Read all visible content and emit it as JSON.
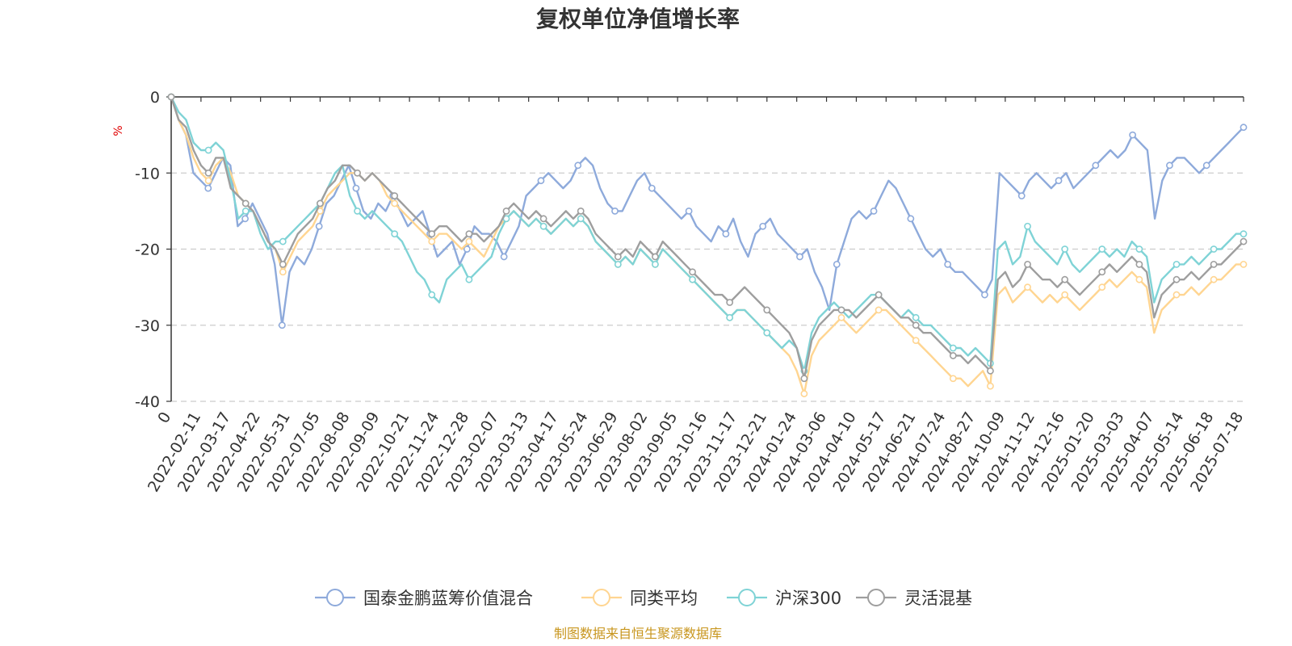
{
  "chart_data": {
    "type": "line",
    "title": "复权单位净值增长率",
    "y_unit": "%",
    "ylim": [
      -40,
      0
    ],
    "y_ticks": [
      0,
      -10,
      -20,
      -30,
      -40
    ],
    "x_first_label": "0",
    "x_ticks": [
      "2022-02-11",
      "2022-03-17",
      "2022-04-22",
      "2022-05-31",
      "2022-07-05",
      "2022-08-08",
      "2022-09-09",
      "2022-10-21",
      "2022-11-24",
      "2022-12-28",
      "2023-02-07",
      "2023-03-13",
      "2023-04-17",
      "2023-05-24",
      "2023-06-29",
      "2023-08-02",
      "2023-09-05",
      "2023-10-16",
      "2023-11-17",
      "2023-12-21",
      "2024-01-24",
      "2024-03-06",
      "2024-04-10",
      "2024-05-17",
      "2024-06-21",
      "2024-07-24",
      "2024-08-27",
      "2024-10-09",
      "2024-11-12",
      "2024-12-16",
      "2025-01-20",
      "2025-03-03",
      "2025-04-07",
      "2025-05-14",
      "2025-06-18",
      "2025-07-18"
    ],
    "grid": "horizontal-dashed",
    "legend_position": "bottom",
    "series": [
      {
        "name": "国泰金鹏蓝筹价值混合",
        "color": "#8eaadb",
        "values": [
          0,
          -3,
          -5,
          -10,
          -11,
          -12,
          -10,
          -8,
          -9,
          -17,
          -16,
          -14,
          -16,
          -18,
          -22,
          -30,
          -23,
          -21,
          -22,
          -20,
          -17,
          -14,
          -13,
          -11,
          -9,
          -12,
          -15,
          -16,
          -14,
          -15,
          -13,
          -15,
          -17,
          -16,
          -15,
          -18,
          -21,
          -20,
          -19,
          -22,
          -20,
          -17,
          -18,
          -18,
          -19,
          -21,
          -19,
          -17,
          -13,
          -12,
          -11,
          -10,
          -11,
          -12,
          -11,
          -9,
          -8,
          -9,
          -12,
          -14,
          -15,
          -15,
          -13,
          -11,
          -10,
          -12,
          -13,
          -14,
          -15,
          -16,
          -15,
          -17,
          -18,
          -19,
          -17,
          -18,
          -16,
          -19,
          -21,
          -18,
          -17,
          -16,
          -18,
          -19,
          -20,
          -21,
          -20,
          -23,
          -25,
          -28,
          -22,
          -19,
          -16,
          -15,
          -16,
          -15,
          -13,
          -11,
          -12,
          -14,
          -16,
          -18,
          -20,
          -21,
          -20,
          -22,
          -23,
          -23,
          -24,
          -25,
          -26,
          -24,
          -10,
          -11,
          -12,
          -13,
          -11,
          -10,
          -11,
          -12,
          -11,
          -10,
          -12,
          -11,
          -10,
          -9,
          -8,
          -7,
          -8,
          -7,
          -5,
          -6,
          -7,
          -16,
          -11,
          -9,
          -8,
          -8,
          -9,
          -10,
          -9,
          -8,
          -7,
          -6,
          -5,
          -4
        ]
      },
      {
        "name": "同类平均",
        "color": "#ffd591",
        "values": [
          0,
          -3,
          -5,
          -8,
          -10,
          -11,
          -9,
          -8,
          -10,
          -13,
          -14,
          -15,
          -17,
          -19,
          -20,
          -23,
          -21,
          -19,
          -18,
          -17,
          -15,
          -13,
          -12,
          -11,
          -10,
          -10,
          -11,
          -10,
          -11,
          -13,
          -14,
          -15,
          -16,
          -17,
          -18,
          -19,
          -18,
          -18,
          -19,
          -20,
          -19,
          -20,
          -21,
          -19,
          -17,
          -16,
          -15,
          -16,
          -17,
          -16,
          -17,
          -18,
          -17,
          -16,
          -17,
          -16,
          -17,
          -19,
          -20,
          -21,
          -22,
          -21,
          -22,
          -20,
          -21,
          -22,
          -20,
          -21,
          -22,
          -23,
          -24,
          -25,
          -26,
          -27,
          -28,
          -29,
          -28,
          -28,
          -29,
          -30,
          -31,
          -32,
          -33,
          -34,
          -36,
          -39,
          -34,
          -32,
          -31,
          -30,
          -29,
          -30,
          -31,
          -30,
          -29,
          -28,
          -28,
          -29,
          -30,
          -31,
          -32,
          -33,
          -34,
          -35,
          -36,
          -37,
          -37,
          -38,
          -37,
          -36,
          -38,
          -26,
          -25,
          -27,
          -26,
          -25,
          -26,
          -27,
          -26,
          -27,
          -26,
          -27,
          -28,
          -27,
          -26,
          -25,
          -24,
          -25,
          -24,
          -23,
          -24,
          -25,
          -31,
          -28,
          -27,
          -26,
          -26,
          -25,
          -26,
          -25,
          -24,
          -24,
          -23,
          -22,
          -22
        ]
      },
      {
        "name": "沪深300",
        "color": "#7fd3d6",
        "values": [
          0,
          -2,
          -3,
          -6,
          -7,
          -7,
          -6,
          -7,
          -11,
          -16,
          -15,
          -15,
          -18,
          -20,
          -19,
          -19,
          -18,
          -17,
          -16,
          -15,
          -14,
          -12,
          -10,
          -9,
          -13,
          -15,
          -16,
          -15,
          -16,
          -17,
          -18,
          -19,
          -21,
          -23,
          -24,
          -26,
          -27,
          -24,
          -23,
          -22,
          -24,
          -23,
          -22,
          -21,
          -18,
          -16,
          -15,
          -16,
          -17,
          -16,
          -17,
          -18,
          -17,
          -16,
          -17,
          -16,
          -17,
          -19,
          -20,
          -21,
          -22,
          -21,
          -22,
          -20,
          -21,
          -22,
          -20,
          -21,
          -22,
          -23,
          -24,
          -25,
          -26,
          -27,
          -28,
          -29,
          -28,
          -28,
          -29,
          -30,
          -31,
          -32,
          -33,
          -32,
          -33,
          -36,
          -31,
          -29,
          -28,
          -27,
          -28,
          -29,
          -28,
          -27,
          -26,
          -26,
          -27,
          -28,
          -29,
          -28,
          -29,
          -30,
          -30,
          -31,
          -32,
          -33,
          -33,
          -34,
          -33,
          -34,
          -35,
          -20,
          -19,
          -22,
          -21,
          -17,
          -19,
          -20,
          -21,
          -22,
          -20,
          -22,
          -23,
          -22,
          -21,
          -20,
          -21,
          -20,
          -21,
          -19,
          -20,
          -21,
          -27,
          -24,
          -23,
          -22,
          -22,
          -21,
          -22,
          -21,
          -20,
          -20,
          -19,
          -18,
          -18
        ]
      },
      {
        "name": "灵活混基",
        "color": "#9e9e9e",
        "values": [
          0,
          -3,
          -4,
          -7,
          -9,
          -10,
          -8,
          -8,
          -12,
          -13,
          -14,
          -15,
          -17,
          -19,
          -20,
          -22,
          -20,
          -18,
          -17,
          -16,
          -14,
          -12,
          -11,
          -9,
          -9,
          -10,
          -11,
          -10,
          -11,
          -12,
          -13,
          -14,
          -15,
          -16,
          -17,
          -18,
          -17,
          -17,
          -18,
          -19,
          -18,
          -18,
          -19,
          -18,
          -17,
          -15,
          -14,
          -15,
          -16,
          -15,
          -16,
          -17,
          -16,
          -15,
          -16,
          -15,
          -16,
          -18,
          -19,
          -20,
          -21,
          -20,
          -21,
          -19,
          -20,
          -21,
          -19,
          -20,
          -21,
          -22,
          -23,
          -24,
          -25,
          -26,
          -26,
          -27,
          -26,
          -25,
          -26,
          -27,
          -28,
          -29,
          -30,
          -31,
          -33,
          -37,
          -32,
          -30,
          -29,
          -28,
          -28,
          -28,
          -29,
          -28,
          -27,
          -26,
          -27,
          -28,
          -29,
          -29,
          -30,
          -31,
          -31,
          -32,
          -33,
          -34,
          -34,
          -35,
          -34,
          -35,
          -36,
          -24,
          -23,
          -25,
          -24,
          -22,
          -23,
          -24,
          -24,
          -25,
          -24,
          -25,
          -26,
          -25,
          -24,
          -23,
          -22,
          -23,
          -22,
          -21,
          -22,
          -23,
          -29,
          -26,
          -25,
          -24,
          -24,
          -23,
          -24,
          -23,
          -22,
          -22,
          -21,
          -20,
          -19
        ]
      }
    ]
  },
  "source_text": "制图数据来自恒生聚源数据库"
}
